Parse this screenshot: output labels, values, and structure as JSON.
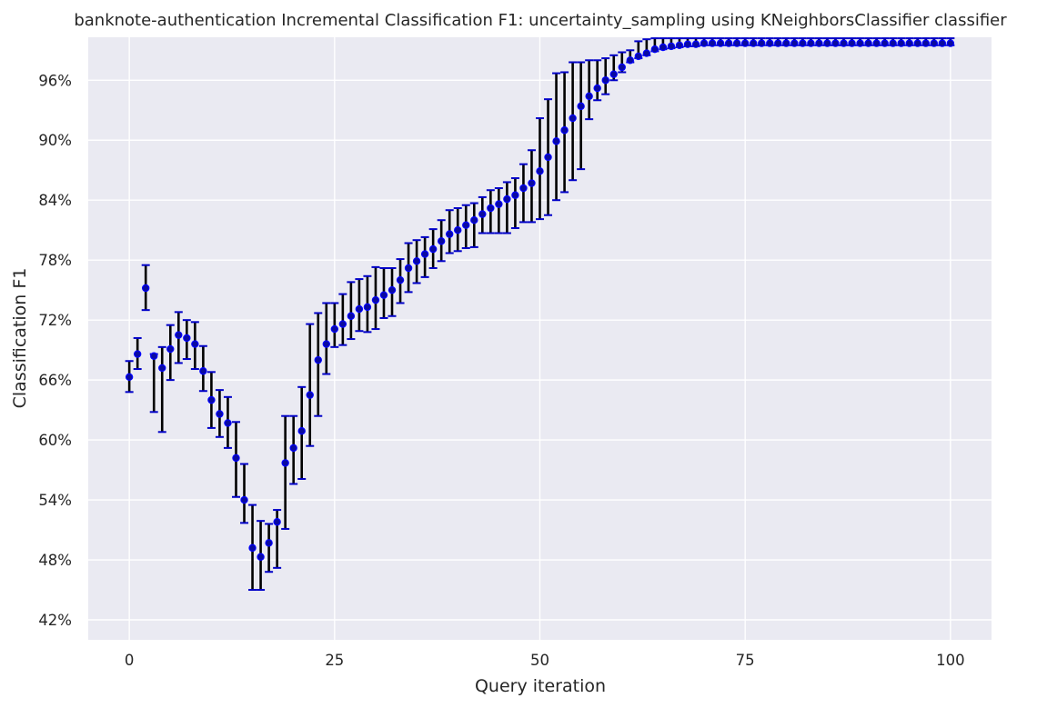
{
  "chart_data": {
    "type": "scatter",
    "title": "banknote-authentication Incremental Classification F1: uncertainty_sampling using KNeighborsClassifier classifier",
    "xlabel": "Query iteration",
    "ylabel": "Classification F1",
    "xlim": [
      -5,
      105
    ],
    "ylim": [
      0.4,
      1.003
    ],
    "x_ticks": [
      0,
      25,
      50,
      75,
      100
    ],
    "x_tick_labels": [
      "0",
      "25",
      "50",
      "75",
      "100"
    ],
    "y_ticks": [
      0.42,
      0.48,
      0.54,
      0.6,
      0.66,
      0.72,
      0.78,
      0.84,
      0.9,
      0.96
    ],
    "y_tick_labels": [
      "42%",
      "48%",
      "54%",
      "60%",
      "66%",
      "72%",
      "78%",
      "84%",
      "90%",
      "96%"
    ],
    "grid": true,
    "colors": {
      "background": "#eaeaf2",
      "grid": "#ffffff",
      "marker": "#0000ff",
      "error_bar": "#000000",
      "error_cap": "#0000c8"
    },
    "x": [
      0,
      1,
      2,
      3,
      4,
      5,
      6,
      7,
      8,
      9,
      10,
      11,
      12,
      13,
      14,
      15,
      16,
      17,
      18,
      19,
      20,
      21,
      22,
      23,
      24,
      25,
      26,
      27,
      28,
      29,
      30,
      31,
      32,
      33,
      34,
      35,
      36,
      37,
      38,
      39,
      40,
      41,
      42,
      43,
      44,
      45,
      46,
      47,
      48,
      49,
      50,
      51,
      52,
      53,
      54,
      55,
      56,
      57,
      58,
      59,
      60,
      61,
      62,
      63,
      64,
      65,
      66,
      67,
      68,
      69,
      70,
      71,
      72,
      73,
      74,
      75,
      76,
      77,
      78,
      79,
      80,
      81,
      82,
      83,
      84,
      85,
      86,
      87,
      88,
      89,
      90,
      91,
      92,
      93,
      94,
      95,
      96,
      97,
      98,
      99,
      100
    ],
    "y": [
      0.663,
      0.686,
      0.752,
      0.684,
      0.672,
      0.691,
      0.705,
      0.702,
      0.696,
      0.669,
      0.64,
      0.626,
      0.617,
      0.582,
      0.54,
      0.492,
      0.483,
      0.497,
      0.518,
      0.577,
      0.592,
      0.609,
      0.645,
      0.68,
      0.696,
      0.711,
      0.716,
      0.724,
      0.731,
      0.733,
      0.74,
      0.745,
      0.75,
      0.76,
      0.772,
      0.779,
      0.786,
      0.791,
      0.799,
      0.806,
      0.81,
      0.815,
      0.82,
      0.826,
      0.832,
      0.836,
      0.841,
      0.845,
      0.852,
      0.857,
      0.869,
      0.883,
      0.899,
      0.91,
      0.922,
      0.934,
      0.944,
      0.952,
      0.96,
      0.966,
      0.973,
      0.98,
      0.984,
      0.987,
      0.991,
      0.993,
      0.994,
      0.995,
      0.996,
      0.996,
      0.997,
      0.997,
      0.997,
      0.997,
      0.997,
      0.997,
      0.997,
      0.997,
      0.997,
      0.997,
      0.997,
      0.997,
      0.997,
      0.997,
      0.997,
      0.997,
      0.997,
      0.997,
      0.997,
      0.997,
      0.997,
      0.997,
      0.997,
      0.997,
      0.997,
      0.997,
      0.997,
      0.997,
      0.997,
      0.997,
      0.997
    ],
    "y_err_low": [
      0.648,
      0.671,
      0.73,
      0.628,
      0.608,
      0.66,
      0.677,
      0.681,
      0.671,
      0.649,
      0.612,
      0.603,
      0.592,
      0.543,
      0.517,
      0.45,
      0.45,
      0.468,
      0.472,
      0.511,
      0.556,
      0.561,
      0.594,
      0.624,
      0.666,
      0.693,
      0.695,
      0.701,
      0.709,
      0.708,
      0.711,
      0.722,
      0.724,
      0.737,
      0.748,
      0.757,
      0.763,
      0.772,
      0.779,
      0.787,
      0.789,
      0.792,
      0.793,
      0.807,
      0.807,
      0.807,
      0.807,
      0.812,
      0.818,
      0.818,
      0.821,
      0.825,
      0.84,
      0.848,
      0.86,
      0.871,
      0.921,
      0.94,
      0.946,
      0.96,
      0.968,
      0.978,
      0.982,
      0.985,
      0.989,
      0.991,
      0.992,
      0.993,
      0.994,
      0.994,
      0.995,
      0.995,
      0.995,
      0.995,
      0.995,
      0.995,
      0.995,
      0.995,
      0.995,
      0.995,
      0.995,
      0.995,
      0.995,
      0.995,
      0.995,
      0.995,
      0.995,
      0.995,
      0.995,
      0.995,
      0.995,
      0.995,
      0.995,
      0.995,
      0.995,
      0.995,
      0.995,
      0.995,
      0.995,
      0.995,
      0.995
    ],
    "y_err_high": [
      0.679,
      0.702,
      0.775,
      0.686,
      0.693,
      0.715,
      0.728,
      0.72,
      0.718,
      0.694,
      0.668,
      0.65,
      0.643,
      0.618,
      0.576,
      0.535,
      0.519,
      0.516,
      0.53,
      0.624,
      0.624,
      0.653,
      0.716,
      0.727,
      0.737,
      0.737,
      0.746,
      0.758,
      0.761,
      0.764,
      0.773,
      0.772,
      0.772,
      0.781,
      0.797,
      0.8,
      0.803,
      0.811,
      0.82,
      0.83,
      0.832,
      0.835,
      0.837,
      0.843,
      0.85,
      0.852,
      0.858,
      0.862,
      0.876,
      0.89,
      0.922,
      0.941,
      0.967,
      0.968,
      0.978,
      0.978,
      0.98,
      0.98,
      0.982,
      0.985,
      0.988,
      0.99,
      0.999,
      1.001,
      1.002,
      1.002,
      1.002,
      1.002,
      1.002,
      1.002,
      1.002,
      1.002,
      1.002,
      1.002,
      1.002,
      1.002,
      1.002,
      1.002,
      1.002,
      1.002,
      1.002,
      1.002,
      1.002,
      1.002,
      1.002,
      1.002,
      1.002,
      1.002,
      1.002,
      1.002,
      1.002,
      1.002,
      1.002,
      1.002,
      1.002,
      1.002,
      1.002,
      1.002,
      1.002,
      1.002,
      1.002
    ]
  }
}
